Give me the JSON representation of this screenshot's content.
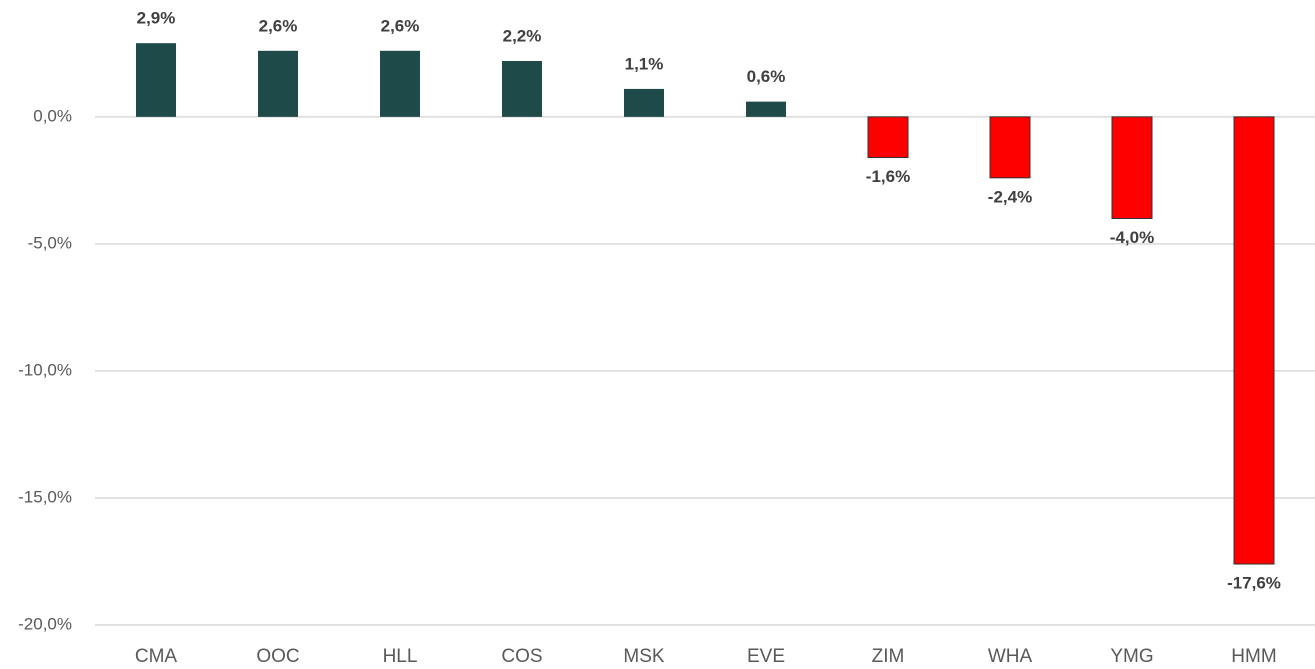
{
  "chart_data": {
    "type": "bar",
    "categories": [
      "CMA",
      "OOC",
      "HLL",
      "COS",
      "MSK",
      "EVE",
      "ZIM",
      "WHA",
      "YMG",
      "HMM"
    ],
    "values": [
      2.9,
      2.6,
      2.6,
      2.2,
      1.1,
      0.6,
      -1.6,
      -2.4,
      -4.0,
      -17.6
    ],
    "value_labels": [
      "2,9%",
      "2,6%",
      "2,6%",
      "2,2%",
      "1,1%",
      "0,6%",
      "-1,6%",
      "-2,4%",
      "-4,0%",
      "-17,6%"
    ],
    "color": "#1f4a4a",
    "negative_color": "#ff0000",
    "ylim": [
      -20,
      4.6
    ],
    "yticks": [
      {
        "value": 0,
        "label": "0,0%"
      },
      {
        "value": -5,
        "label": "-5,0%"
      },
      {
        "value": -10,
        "label": "-10,0%"
      },
      {
        "value": -15,
        "label": "-15,0%"
      },
      {
        "value": -20,
        "label": "-20,0%"
      }
    ],
    "grid": true
  }
}
